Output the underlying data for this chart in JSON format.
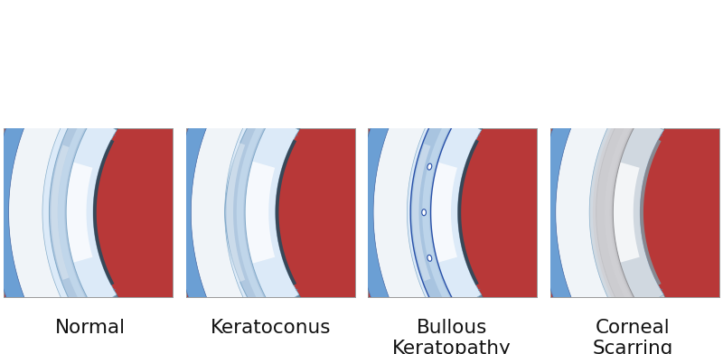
{
  "background": "#ffffff",
  "labels": [
    "Normal",
    "Keratoconus",
    "Bullous\nKeratopathy",
    "Corneal\nScarring"
  ],
  "label_fontsize": 15.5,
  "colors": {
    "blue_sclera": "#6b9fd4",
    "blue_sclera_dark": "#4a7ab8",
    "white_sclera": "#f0f4f8",
    "cornea_clear": "#b8cfe8",
    "cornea_bluish": "#9ab8d8",
    "iris_color": "#6888a0",
    "iris_dark": "#4a6878",
    "lens_color": "#dceaf8",
    "lens_highlight": "#f5faff",
    "lens_edge": "#8ab0cc",
    "pupil_color": "#384858",
    "muscle_red": "#b83838",
    "muscle_light": "#cc5050",
    "muscle_dark": "#8a2828",
    "zonule_color": "#6080a0",
    "ciliary_dark": "#7a3030",
    "cornea_scar": "#c8c8cc",
    "scar_overlay": "#d4d4d8",
    "bullous_edge": "#2850a8"
  }
}
